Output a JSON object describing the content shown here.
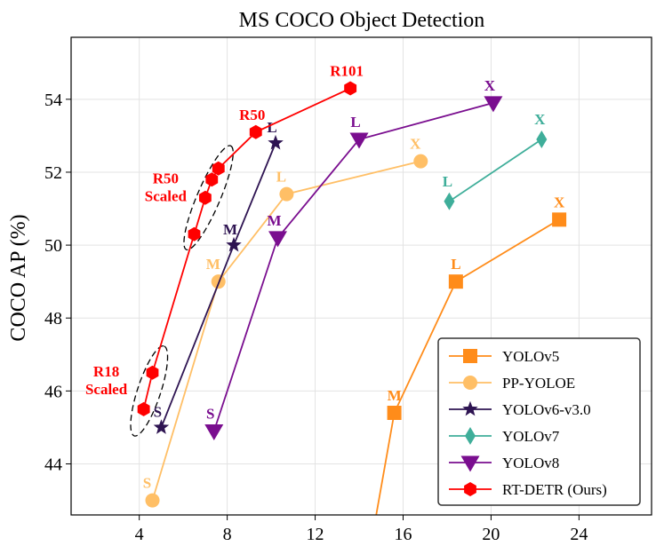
{
  "chart_data": {
    "type": "line",
    "title": "MS COCO Object Detection",
    "xlabel": "",
    "ylabel": "COCO AP (%)",
    "xlim": [
      0.9,
      27.3
    ],
    "ylim": [
      42.6,
      55.7
    ],
    "xticks": [
      4,
      8,
      12,
      16,
      20,
      24
    ],
    "yticks": [
      44,
      46,
      48,
      50,
      52,
      54
    ],
    "grid": true,
    "legend_position": "lower-right",
    "series": [
      {
        "name": "YOLOv5",
        "color": "#ff8c1a",
        "marker": "square",
        "points": [
          {
            "x": 14.6,
            "y": 42.0,
            "label": ""
          },
          {
            "x": 15.6,
            "y": 45.4,
            "label": "M"
          },
          {
            "x": 18.4,
            "y": 49.0,
            "label": "L"
          },
          {
            "x": 23.1,
            "y": 50.7,
            "label": "X"
          }
        ]
      },
      {
        "name": "PP-YOLOE",
        "color": "#ffbf66",
        "marker": "circle",
        "points": [
          {
            "x": 4.6,
            "y": 43.0,
            "label": "S"
          },
          {
            "x": 7.6,
            "y": 49.0,
            "label": "M"
          },
          {
            "x": 10.7,
            "y": 51.4,
            "label": "L"
          },
          {
            "x": 16.8,
            "y": 52.3,
            "label": "X"
          }
        ]
      },
      {
        "name": "YOLOv6-v3.0",
        "color": "#2e1452",
        "marker": "star",
        "points": [
          {
            "x": 5.0,
            "y": 45.0,
            "label": "S"
          },
          {
            "x": 8.3,
            "y": 50.0,
            "label": "M"
          },
          {
            "x": 10.2,
            "y": 52.8,
            "label": "L"
          }
        ]
      },
      {
        "name": "YOLOv7",
        "color": "#3fae9a",
        "marker": "diamond",
        "points": [
          {
            "x": 18.1,
            "y": 51.2,
            "label": "L"
          },
          {
            "x": 22.3,
            "y": 52.9,
            "label": "X"
          }
        ]
      },
      {
        "name": "YOLOv8",
        "color": "#7a0e8f",
        "marker": "triangle-down",
        "points": [
          {
            "x": 7.4,
            "y": 44.9,
            "label": "S"
          },
          {
            "x": 10.3,
            "y": 50.2,
            "label": "M"
          },
          {
            "x": 14.0,
            "y": 52.9,
            "label": "L"
          },
          {
            "x": 20.1,
            "y": 53.9,
            "label": "X"
          }
        ]
      },
      {
        "name": "RT-DETR (Ours)",
        "color": "#ff0000",
        "marker": "hexagon",
        "points": [
          {
            "x": 4.2,
            "y": 45.5,
            "label": ""
          },
          {
            "x": 4.6,
            "y": 46.5,
            "label": ""
          },
          {
            "x": 6.5,
            "y": 50.3,
            "label": ""
          },
          {
            "x": 7.0,
            "y": 51.3,
            "label": ""
          },
          {
            "x": 7.3,
            "y": 51.8,
            "label": ""
          },
          {
            "x": 7.6,
            "y": 52.1,
            "label": ""
          },
          {
            "x": 9.3,
            "y": 53.1,
            "label": "R50"
          },
          {
            "x": 13.6,
            "y": 54.3,
            "label": "R101"
          }
        ]
      }
    ],
    "annotations": [
      {
        "text": "R50",
        "text2": "Scaled",
        "color": "#ff0000",
        "ellipse_x": [
          6.3,
          8.0
        ],
        "ellipse_y": [
          50.1,
          52.5
        ],
        "label_x": 5.2,
        "label_y": 51.7
      },
      {
        "text": "R18",
        "text2": "Scaled",
        "color": "#ff0000",
        "ellipse_x": [
          3.9,
          5.0
        ],
        "ellipse_y": [
          45.0,
          47.0
        ],
        "label_x": 2.5,
        "label_y": 46.4
      }
    ]
  }
}
